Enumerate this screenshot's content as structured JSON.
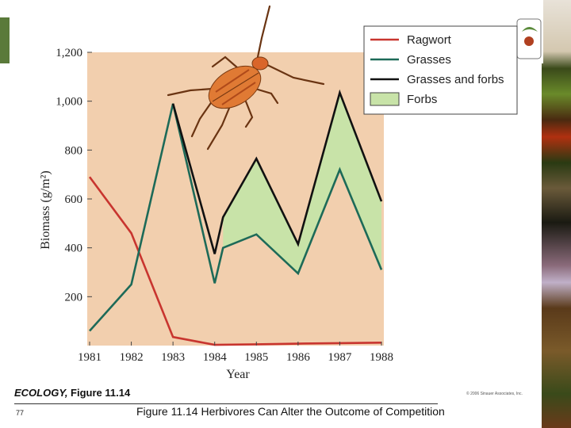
{
  "chart_data": {
    "type": "line",
    "x": [
      1981,
      1982,
      1983,
      1984,
      1985,
      1986,
      1987,
      1988
    ],
    "xlabel": "Year",
    "ylabel": "Biomass (g/m²)",
    "ylim": [
      0,
      1200
    ],
    "yticks": [
      200,
      400,
      600,
      800,
      1000,
      1200
    ],
    "ytick_labels": [
      "200",
      "400",
      "600",
      "800",
      "1,000",
      "1,200"
    ],
    "grid": false,
    "legend_position": "top-right",
    "series": [
      {
        "name": "Ragwort",
        "color": "#c8352f",
        "points": [
          [
            1981,
            690
          ],
          [
            1982,
            460
          ],
          [
            1983,
            35
          ],
          [
            1984,
            3
          ],
          [
            1985,
            5
          ],
          [
            1986,
            8
          ],
          [
            1987,
            10
          ],
          [
            1988,
            12
          ]
        ]
      },
      {
        "name": "Grasses",
        "color": "#1d6a58",
        "points": [
          [
            1981,
            60
          ],
          [
            1982,
            250
          ],
          [
            1983,
            990
          ],
          [
            1984,
            255
          ],
          [
            1984.2,
            400
          ],
          [
            1985,
            455
          ],
          [
            1986,
            295
          ],
          [
            1987,
            720
          ],
          [
            1988,
            310
          ]
        ]
      },
      {
        "name": "Grasses and forbs",
        "color": "#111111",
        "points": [
          [
            1983,
            990
          ],
          [
            1984,
            375
          ],
          [
            1984.2,
            525
          ],
          [
            1985,
            765
          ],
          [
            1986,
            415
          ],
          [
            1987,
            1035
          ],
          [
            1988,
            590
          ]
        ]
      }
    ],
    "area": {
      "name": "Forbs",
      "color": "#c8e3a8",
      "between": [
        "Grasses",
        "Grasses and forbs"
      ],
      "from": 1984.2,
      "to": 1988
    }
  },
  "colors": {
    "plot_background": "#f2cfae",
    "page_background": "#ffffff"
  },
  "footer": {
    "book": "ECOLOGY,",
    "figure": " Figure 11.14",
    "copyright": "© 2006 Sinauer Associates, Inc.",
    "page_number": "77",
    "caption": "Figure 11.14 Herbivores Can Alter the Outcome of Competition"
  }
}
